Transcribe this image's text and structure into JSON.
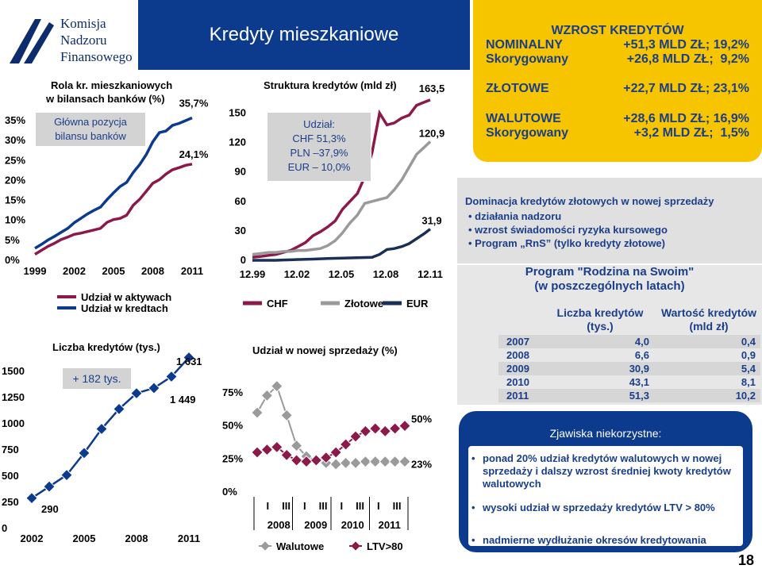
{
  "logo": {
    "line1": "Komisja",
    "line2": "Nadzoru",
    "line3": "Finansowego"
  },
  "title": "Kredyty mieszkaniowe",
  "growth_box": {
    "title": "WZROST KREDYTÓW",
    "rows": [
      {
        "label": "NOMINALNY",
        "value": "+51,3 MLD ZŁ; 19,2%"
      },
      {
        "label": "Skorygowany",
        "value": "+26,8 MLD ZŁ;  9,2%"
      },
      {
        "label": "ZŁOTOWE",
        "value": "+22,7 MLD ZŁ; 23,1%"
      },
      {
        "label": "WALUTOWE",
        "value": "+28,6 MLD ZŁ; 16,9%"
      },
      {
        "label": "Skorygowany",
        "value": "+3,2 MLD ZŁ;  1,5%"
      }
    ]
  },
  "dominance": {
    "title": "Dominacja kredytów złotowych w nowej sprzedaży",
    "bullets": [
      "działania nadzoru",
      "wzrost świadomości ryzyka kursowego",
      "Program „RnS” (tylko kredyty złotowe)"
    ]
  },
  "main_box": {
    "text": "Główna pozycja bilansu banków"
  },
  "currency_box": {
    "title": "Udział:",
    "lines": [
      "CHF    51,3%",
      "PLN  –37,9%",
      "EUR – 10,0%"
    ]
  },
  "growth_badge": "+ 182 tys.",
  "phenomena": {
    "title": "Zjawiska niekorzystne:",
    "bullets": [
      "ponad 20% udział kredytów walutowych w nowej sprzedaży i dalszy  wzrost średniej kwoty kredytów walutowych",
      "wysoki udział w sprzedaży kredytów  LTV > 80%",
      "nadmierne wydłużanie okresów kredytowania"
    ]
  },
  "rns_table": {
    "title1": "Program \"Rodzina na Swoim\"",
    "title2": "(w poszczególnych latach)",
    "col1a": "Liczba kredytów",
    "col1b": "(tys.)",
    "col2a": "Wartość kredytów",
    "col2b": "(mld zł)",
    "rows": [
      {
        "year": "2007",
        "count": "4,0",
        "value": "0,4"
      },
      {
        "year": "2008",
        "count": "6,6",
        "value": "0,9"
      },
      {
        "year": "2009",
        "count": "30,9",
        "value": "5,4"
      },
      {
        "year": "2010",
        "count": "43,1",
        "value": "8,1"
      },
      {
        "year": "2011",
        "count": "51,3",
        "value": "10,2"
      }
    ]
  },
  "page_number": "18",
  "colors": {
    "navy": "#0c3a8c",
    "chf": "#8b1a4a",
    "pln": "#9a9a9a",
    "eur": "#1a2f55",
    "text_blue": "#1a3e8a"
  },
  "chart_data": [
    {
      "id": "role",
      "type": "line",
      "title": "Rola kr. mieszkaniowych w bilansach banków (%)",
      "x_ticks": [
        "1999",
        "2002",
        "2005",
        "2008",
        "2011"
      ],
      "y_ticks": [
        "0%",
        "5%",
        "10%",
        "15%",
        "20%",
        "25%",
        "30%",
        "35%"
      ],
      "ylim": [
        0,
        35
      ],
      "x": [
        1999,
        1999.5,
        2000,
        2000.5,
        2001,
        2001.5,
        2002,
        2002.5,
        2003,
        2003.5,
        2004,
        2004.5,
        2005,
        2005.5,
        2006,
        2006.5,
        2007,
        2007.5,
        2008,
        2008.5,
        2009,
        2009.5,
        2010,
        2010.5,
        2011
      ],
      "series": [
        {
          "name": "Udział w aktywach",
          "color": "#8b1a4a",
          "end_label": "24,1%",
          "values": [
            1.5,
            2.5,
            3.5,
            4.3,
            5.2,
            5.8,
            6.5,
            6.8,
            7.2,
            7.6,
            8.0,
            9.5,
            10.2,
            10.5,
            11.3,
            13.8,
            15.3,
            17.3,
            19.3,
            20.2,
            21.6,
            22.7,
            23.2,
            23.8,
            24.1
          ]
        },
        {
          "name": "Udział w kredtach",
          "color": "#0c3a8c",
          "end_label": "35,7%",
          "values": [
            3.0,
            4.0,
            5.1,
            6.0,
            7.0,
            8.0,
            9.4,
            10.5,
            11.6,
            12.5,
            13.3,
            15.2,
            16.9,
            18.5,
            19.5,
            22.0,
            24.0,
            26.5,
            29.7,
            32.0,
            32.4,
            33.8,
            34.3,
            35.0,
            35.7
          ]
        }
      ],
      "legend": [
        "Udział w aktywach",
        "Udział w kredtach"
      ]
    },
    {
      "id": "structure",
      "type": "line",
      "title": "Struktura kredytów (mld zł)",
      "x_ticks": [
        "12.99",
        "12.02",
        "12.05",
        "12.08",
        "12.11"
      ],
      "y_ticks": [
        "0",
        "30",
        "60",
        "90",
        "120",
        "150"
      ],
      "ylim": [
        0,
        165
      ],
      "x": [
        1999.92,
        2000.5,
        2001,
        2001.5,
        2002,
        2002.5,
        2003,
        2003.5,
        2004,
        2004.5,
        2005,
        2005.5,
        2006,
        2006.5,
        2007,
        2007.5,
        2008,
        2008.5,
        2009,
        2009.5,
        2010,
        2010.5,
        2011,
        2011.5,
        2011.92
      ],
      "series": [
        {
          "name": "CHF",
          "color": "#8b1a4a",
          "end_label": "163,5",
          "values": [
            3,
            4,
            5,
            6,
            8,
            10,
            14,
            18,
            25,
            29,
            34,
            40,
            52,
            60,
            68,
            85,
            110,
            150,
            138,
            140,
            145,
            148,
            158,
            161,
            163.5
          ]
        },
        {
          "name": "Złotowe",
          "color": "#9a9a9a",
          "end_label": "120,9",
          "values": [
            6,
            7,
            8,
            8,
            9,
            9,
            10,
            10,
            11,
            12,
            15,
            20,
            28,
            38,
            46,
            58,
            60,
            62,
            64,
            72,
            82,
            95,
            108,
            115,
            120.9
          ]
        },
        {
          "name": "EUR",
          "color": "#1a2f55",
          "end_label": "31,9",
          "values": [
            0,
            0,
            0,
            0,
            0.3,
            0.5,
            0.8,
            1,
            1.2,
            1.5,
            1.8,
            2,
            2.2,
            2.4,
            2.6,
            2.8,
            3,
            6,
            11,
            12,
            14,
            17,
            22,
            27,
            31.9
          ]
        }
      ],
      "legend": [
        "CHF",
        "Złotowe",
        "EUR"
      ]
    },
    {
      "id": "count",
      "type": "line",
      "title": "Liczba kredytów (tys.)",
      "x_ticks": [
        "2002",
        "2005",
        "2008",
        "2011"
      ],
      "y_ticks": [
        "0",
        "250",
        "500",
        "750",
        "1000",
        "1250",
        "1500"
      ],
      "ylim": [
        0,
        1650
      ],
      "x": [
        2002,
        2003,
        2004,
        2005,
        2006,
        2007,
        2008,
        2009,
        2010,
        2011
      ],
      "series": [
        {
          "name": "",
          "color": "#0c3a8c",
          "values": [
            290,
            400,
            510,
            720,
            950,
            1140,
            1290,
            1340,
            1449,
            1631
          ]
        }
      ],
      "annotations": [
        "290",
        "1 449",
        "1 631"
      ]
    },
    {
      "id": "share",
      "type": "line",
      "title": "Udział w nowej sprzedaży (%)",
      "x_ticks": [
        "I",
        "III",
        "I",
        "III",
        "I",
        "III",
        "I",
        "III"
      ],
      "year_ticks": [
        "2008",
        "2009",
        "2010",
        "2011"
      ],
      "y_ticks": [
        "0%",
        "25%",
        "50%",
        "75%"
      ],
      "ylim": [
        0,
        90
      ],
      "x": [
        1,
        2,
        3,
        4,
        5,
        6,
        7,
        8,
        9,
        10,
        11,
        12,
        13,
        14,
        15,
        16
      ],
      "series": [
        {
          "name": "Walutowe",
          "color": "#9a9a9a",
          "end_label": "23%",
          "values": [
            60,
            73,
            80,
            58,
            35,
            27,
            24,
            22,
            21,
            22,
            22,
            23,
            23,
            23,
            23,
            23
          ]
        },
        {
          "name": "LTV>80",
          "color": "#8b1a4a",
          "end_label": "50%",
          "values": [
            30,
            32,
            34,
            28,
            24,
            23,
            24,
            26,
            30,
            36,
            42,
            46,
            48,
            46,
            48,
            50
          ]
        }
      ],
      "legend": [
        "Walutowe",
        "LTV>80"
      ]
    }
  ]
}
